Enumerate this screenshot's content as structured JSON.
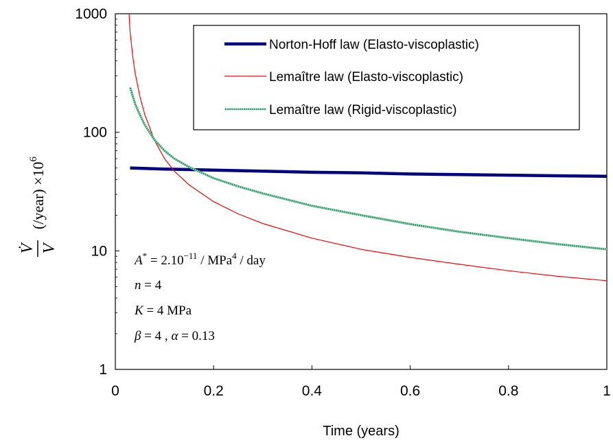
{
  "chart_data": {
    "type": "line",
    "xlabel": "Time (years)",
    "ylabel_parts": {
      "numerator": "V̇",
      "denominator": "V",
      "units": "(/year) ×10",
      "exponent": "6"
    },
    "xlim": [
      0,
      1
    ],
    "ylim": [
      1,
      1000
    ],
    "y_scale": "log",
    "x_ticks": [
      0,
      0.2,
      0.4,
      0.6,
      0.8,
      1
    ],
    "x_tick_labels": [
      "0",
      "0.2",
      "0.4",
      "0.6",
      "0.8",
      "1"
    ],
    "y_ticks": [
      1,
      10,
      100,
      1000
    ],
    "y_tick_labels": [
      "1",
      "10",
      "100",
      "1000"
    ],
    "grid": false,
    "legend_position": "top-right",
    "series": [
      {
        "name": "Norton-Hoff law (Elasto-viscoplastic)",
        "color": "#000080",
        "style": "thick",
        "x": [
          0.03,
          0.1,
          0.2,
          0.3,
          0.4,
          0.5,
          0.6,
          0.7,
          0.8,
          0.9,
          1.0
        ],
        "y": [
          50,
          49,
          48,
          47,
          46,
          45.5,
          44.5,
          44,
          43.5,
          43,
          42.5
        ]
      },
      {
        "name": "Lemaître law (Elasto-viscoplastic)",
        "color": "#ff0000",
        "style": "thin",
        "x": [
          0.028,
          0.03,
          0.035,
          0.04,
          0.05,
          0.06,
          0.08,
          0.1,
          0.12,
          0.15,
          0.2,
          0.25,
          0.3,
          0.4,
          0.5,
          0.6,
          0.7,
          0.8,
          0.9,
          1.0
        ],
        "y": [
          1000,
          700,
          450,
          320,
          200,
          140,
          85,
          60,
          47,
          36,
          26,
          20.5,
          17,
          12.8,
          10.3,
          8.8,
          7.7,
          6.8,
          6.1,
          5.6
        ]
      },
      {
        "name": "Lemaître law (Rigid-viscoplastic)",
        "color": "#2e9e6b",
        "style": "hatched",
        "x": [
          0.03,
          0.04,
          0.05,
          0.06,
          0.08,
          0.1,
          0.12,
          0.15,
          0.2,
          0.25,
          0.3,
          0.4,
          0.5,
          0.6,
          0.7,
          0.8,
          0.9,
          1.0
        ],
        "y": [
          240,
          175,
          140,
          115,
          86,
          70,
          60,
          51,
          41,
          35,
          30.5,
          24,
          20,
          16.8,
          14.5,
          12.8,
          11.4,
          10.3
        ]
      }
    ],
    "annotations": [
      {
        "base": "A",
        "sup": "*",
        "text1": " = 2.10",
        "sup2": "−11",
        "text2": " / MPa",
        "sup3": "4",
        "text3": " / day"
      },
      {
        "base": "n",
        "text1": " = 4"
      },
      {
        "base": "K",
        "text1": " = 4 MPa"
      },
      {
        "base": "β",
        "text1": " = 4 , ",
        "base2": "α",
        "text2": " = 0.13"
      }
    ]
  }
}
